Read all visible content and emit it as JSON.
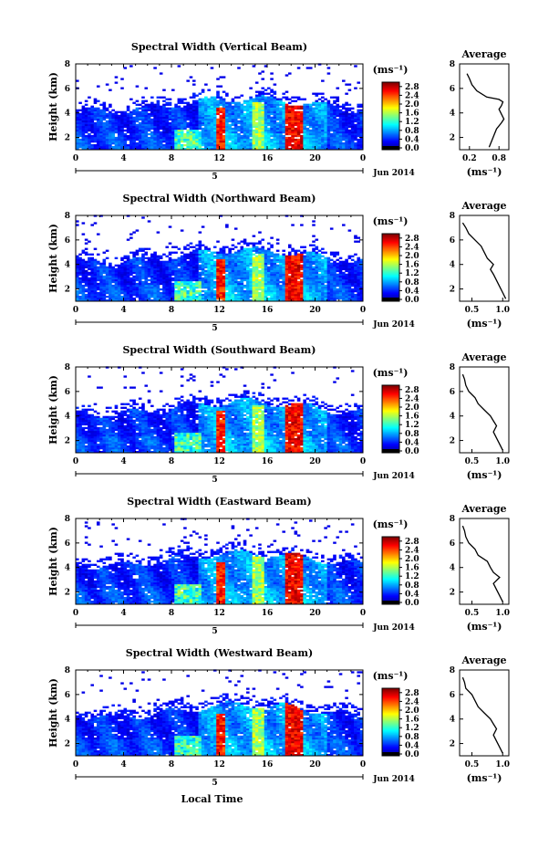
{
  "figure": {
    "xlabel": "Local Time",
    "date_label": "Jun 2014",
    "day_label": "5",
    "ylabel": "Height (km)",
    "colorbar_unit": "(ms⁻¹)",
    "avg_title": "Average",
    "avg_xlabel": "(ms⁻¹)"
  },
  "colors": {
    "jet": [
      "#00008f",
      "#0000ff",
      "#0080ff",
      "#00ffff",
      "#80ff80",
      "#ffff00",
      "#ff8000",
      "#ff0000",
      "#800000"
    ],
    "colorbar_zero": "#000000"
  },
  "chart_data": [
    {
      "type": "heatmap",
      "title": "Spectral Width (Vertical Beam)",
      "x_ticks": [
        "0",
        "4",
        "8",
        "12",
        "16",
        "20",
        "0"
      ],
      "y_ticks": [
        "2",
        "4",
        "6",
        "8"
      ],
      "xlim": [
        0,
        24
      ],
      "ylim": [
        1,
        8
      ],
      "colorbar_ticks": [
        "0.0",
        "0.4",
        "0.8",
        "1.2",
        "1.6",
        "2.0",
        "2.4",
        "2.8"
      ],
      "colorbar_range": [
        0,
        3.0
      ],
      "average": {
        "title": "Average",
        "x_ticks": [
          "0.2",
          "0.8"
        ],
        "y_ticks": [
          "2",
          "4",
          "6",
          "8"
        ],
        "xlim": [
          0,
          1.0
        ],
        "ylim": [
          1,
          8
        ],
        "x": [
          0.6,
          0.65,
          0.7,
          0.75,
          0.85,
          0.9,
          0.85,
          0.8,
          0.85,
          0.88,
          0.8,
          0.55,
          0.35,
          0.25,
          0.2,
          0.15
        ],
        "y": [
          1.2,
          1.7,
          2.2,
          2.7,
          3.2,
          3.5,
          3.9,
          4.3,
          4.6,
          4.9,
          5.1,
          5.3,
          5.8,
          6.3,
          6.8,
          7.2
        ]
      }
    },
    {
      "type": "heatmap",
      "title": "Spectral Width (Northward Beam)",
      "x_ticks": [
        "0",
        "4",
        "8",
        "12",
        "16",
        "20",
        "0"
      ],
      "y_ticks": [
        "2",
        "4",
        "6",
        "8"
      ],
      "xlim": [
        0,
        24
      ],
      "ylim": [
        1,
        8
      ],
      "colorbar_ticks": [
        "0.0",
        "0.4",
        "0.8",
        "1.2",
        "1.6",
        "2.0",
        "2.4",
        "2.8"
      ],
      "colorbar_range": [
        0,
        3.0
      ],
      "average": {
        "title": "Average",
        "x_ticks": [
          "0.5",
          "1.0"
        ],
        "y_ticks": [
          "2",
          "4",
          "6",
          "8"
        ],
        "xlim": [
          0.3,
          1.1
        ],
        "ylim": [
          1,
          8
        ],
        "x": [
          1.05,
          1.0,
          0.95,
          0.9,
          0.85,
          0.8,
          0.85,
          0.75,
          0.7,
          0.65,
          0.55,
          0.45,
          0.4,
          0.35
        ],
        "y": [
          1.2,
          1.7,
          2.2,
          2.7,
          3.2,
          3.6,
          4.0,
          4.5,
          5.0,
          5.5,
          6.0,
          6.5,
          7.0,
          7.4
        ]
      }
    },
    {
      "type": "heatmap",
      "title": "Spectral Width (Southward Beam)",
      "x_ticks": [
        "0",
        "4",
        "8",
        "12",
        "16",
        "20",
        "0"
      ],
      "y_ticks": [
        "2",
        "4",
        "6",
        "8"
      ],
      "xlim": [
        0,
        24
      ],
      "ylim": [
        1,
        8
      ],
      "colorbar_ticks": [
        "0.0",
        "0.4",
        "0.8",
        "1.2",
        "1.6",
        "2.0",
        "2.4",
        "2.8"
      ],
      "colorbar_range": [
        0,
        3.0
      ],
      "average": {
        "title": "Average",
        "x_ticks": [
          "0.5",
          "1.0"
        ],
        "y_ticks": [
          "2",
          "4",
          "6",
          "8"
        ],
        "xlim": [
          0.3,
          1.1
        ],
        "ylim": [
          1,
          8
        ],
        "x": [
          1.0,
          0.95,
          0.9,
          0.85,
          0.9,
          0.85,
          0.8,
          0.7,
          0.6,
          0.55,
          0.45,
          0.4,
          0.38,
          0.35
        ],
        "y": [
          1.2,
          1.7,
          2.2,
          2.7,
          3.2,
          3.6,
          4.0,
          4.5,
          5.0,
          5.5,
          6.0,
          6.5,
          7.0,
          7.4
        ]
      }
    },
    {
      "type": "heatmap",
      "title": "Spectral Width (Eastward Beam)",
      "x_ticks": [
        "0",
        "4",
        "8",
        "12",
        "16",
        "20",
        "0"
      ],
      "y_ticks": [
        "2",
        "4",
        "6",
        "8"
      ],
      "xlim": [
        0,
        24
      ],
      "ylim": [
        1,
        8
      ],
      "colorbar_ticks": [
        "0.0",
        "0.4",
        "0.8",
        "1.2",
        "1.6",
        "2.0",
        "2.4",
        "2.8"
      ],
      "colorbar_range": [
        0,
        3.0
      ],
      "average": {
        "title": "Average",
        "x_ticks": [
          "0.5",
          "1.0"
        ],
        "y_ticks": [
          "2",
          "4",
          "6",
          "8"
        ],
        "xlim": [
          0.3,
          1.1
        ],
        "ylim": [
          1,
          8
        ],
        "x": [
          1.0,
          0.95,
          0.9,
          0.85,
          0.95,
          0.85,
          0.8,
          0.75,
          0.6,
          0.55,
          0.45,
          0.4,
          0.38,
          0.35
        ],
        "y": [
          1.2,
          1.7,
          2.2,
          2.7,
          3.2,
          3.6,
          4.0,
          4.5,
          5.0,
          5.5,
          6.0,
          6.5,
          7.0,
          7.4
        ]
      }
    },
    {
      "type": "heatmap",
      "title": "Spectral Width (Westward Beam)",
      "x_ticks": [
        "0",
        "4",
        "8",
        "12",
        "16",
        "20",
        "0"
      ],
      "y_ticks": [
        "2",
        "4",
        "6",
        "8"
      ],
      "xlim": [
        0,
        24
      ],
      "ylim": [
        1,
        8
      ],
      "colorbar_ticks": [
        "0.0",
        "0.4",
        "0.8",
        "1.2",
        "1.6",
        "2.0",
        "2.4",
        "2.8"
      ],
      "colorbar_range": [
        0,
        3.0
      ],
      "average": {
        "title": "Average",
        "x_ticks": [
          "0.5",
          "1.0"
        ],
        "y_ticks": [
          "2",
          "4",
          "6",
          "8"
        ],
        "xlim": [
          0.3,
          1.1
        ],
        "ylim": [
          1,
          8
        ],
        "x": [
          1.0,
          0.95,
          0.9,
          0.85,
          0.9,
          0.85,
          0.8,
          0.7,
          0.6,
          0.55,
          0.5,
          0.4,
          0.38,
          0.35
        ],
        "y": [
          1.2,
          1.7,
          2.2,
          2.7,
          3.2,
          3.6,
          4.0,
          4.5,
          5.0,
          5.5,
          6.0,
          6.5,
          7.0,
          7.4
        ]
      }
    }
  ]
}
